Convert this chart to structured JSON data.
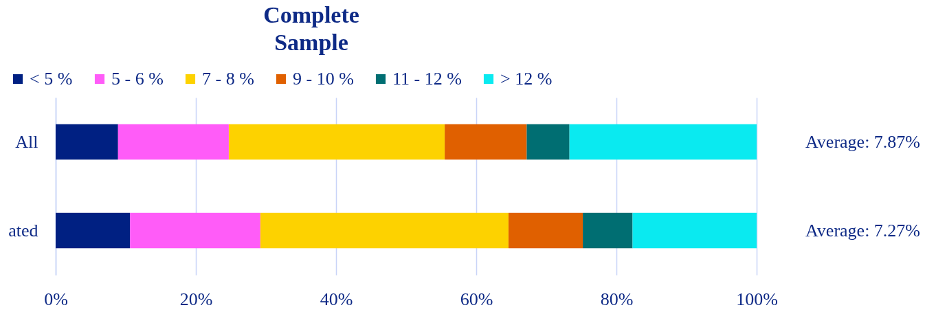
{
  "chart_data": {
    "type": "bar",
    "orientation": "horizontal",
    "stacked": true,
    "title": "Complete Sample",
    "categories": [
      "All",
      "ated"
    ],
    "series": [
      {
        "name": "< 5 %",
        "color": "#002082",
        "values": [
          8.9,
          10.6
        ]
      },
      {
        "name": "5 - 6 %",
        "color": "#ff5cf8",
        "values": [
          15.8,
          18.6
        ]
      },
      {
        "name": "7 - 8 %",
        "color": "#fdd200",
        "values": [
          30.8,
          35.4
        ]
      },
      {
        "name": "9 - 10 %",
        "color": "#e06000",
        "values": [
          11.7,
          10.6
        ]
      },
      {
        "name": "11 - 12 %",
        "color": "#006e72",
        "values": [
          6.1,
          7.1
        ]
      },
      {
        "name": "> 12 %",
        "color": "#0aeaf0",
        "values": [
          26.7,
          17.7
        ]
      }
    ],
    "xlim": [
      0,
      100
    ],
    "xticks": [
      {
        "value": 0,
        "label": "0%"
      },
      {
        "value": 20,
        "label": "20%"
      },
      {
        "value": 40,
        "label": "40%"
      },
      {
        "value": 60,
        "label": "60%"
      },
      {
        "value": 80,
        "label": "80%"
      },
      {
        "value": 100,
        "label": "100%"
      }
    ],
    "grid": "x",
    "legend": "top left",
    "annotations": [
      "Average: 7.87%",
      "Average: 7.27%"
    ]
  }
}
